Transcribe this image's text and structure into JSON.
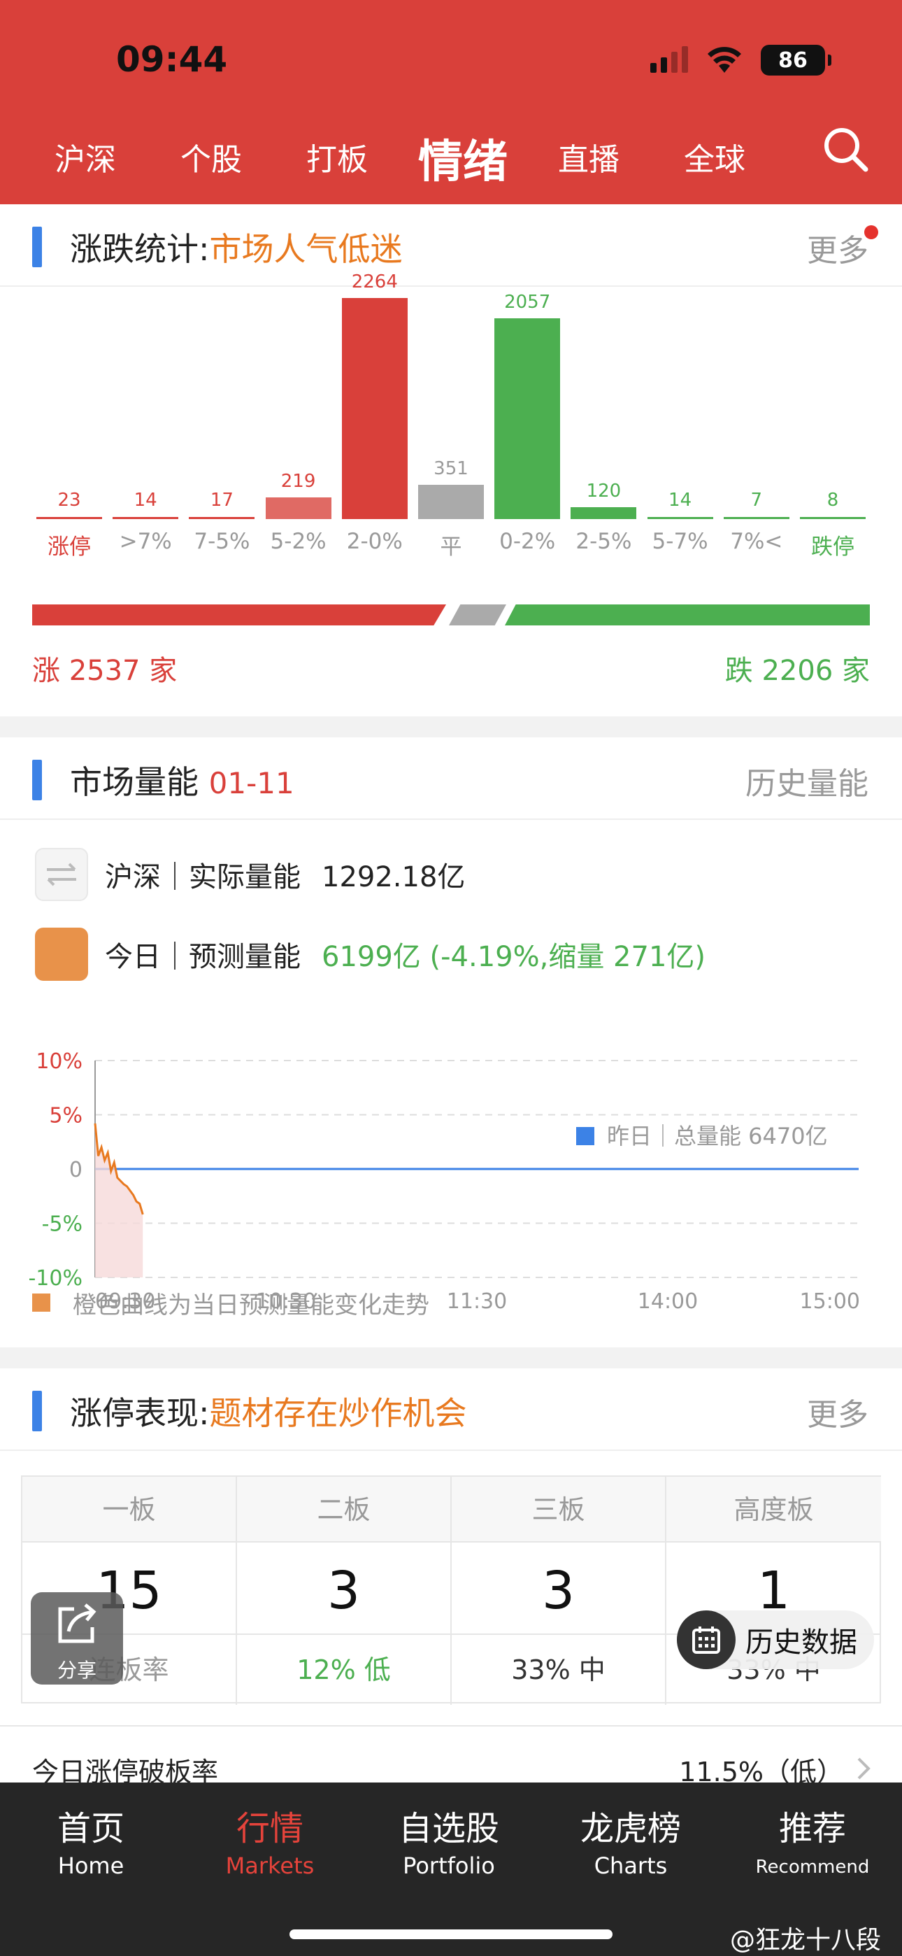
{
  "status_bar": {
    "time": "09:44",
    "battery": "86"
  },
  "nav": {
    "tabs": [
      "沪深",
      "个股",
      "打板",
      "情绪",
      "直播",
      "全球"
    ],
    "active": "情绪"
  },
  "updown": {
    "title": "涨跌统计:",
    "mood": "市场人气低迷",
    "more": "更多",
    "rise_text": "涨 2537 家",
    "fall_text": "跌 2206 家"
  },
  "chart_data": [
    {
      "type": "bar",
      "title": "涨跌统计",
      "categories": [
        "涨停",
        ">7%",
        "7-5%",
        "5-2%",
        "2-0%",
        "平",
        "0-2%",
        "2-5%",
        "5-7%",
        "7%<",
        "跌停"
      ],
      "values": [
        23,
        14,
        17,
        219,
        2264,
        351,
        2057,
        120,
        14,
        7,
        8
      ],
      "value_labels": [
        "23",
        "14",
        "17",
        "219",
        "2264",
        "351",
        "2057",
        "120",
        "14",
        "7",
        "8"
      ],
      "colors": [
        "#d9403a",
        "#d9403a",
        "#d9403a",
        "#e06a64",
        "#d9403a",
        "#aaaaaa",
        "#4caf50",
        "#4caf50",
        "#4caf50",
        "#4caf50",
        "#4caf50"
      ],
      "ylim": [
        0,
        2264
      ]
    },
    {
      "type": "line",
      "title": "",
      "x_ticks": [
        "09:30",
        "10:30",
        "11:30",
        "14:00",
        "15:00"
      ],
      "y_ticks": [
        "10%",
        "5%",
        "0",
        "-5%",
        "-10%"
      ],
      "ylim": [
        -10,
        10
      ],
      "series": [
        {
          "name": "",
          "x": [
            0,
            1,
            2,
            3,
            4,
            5,
            6,
            7,
            8,
            9,
            10,
            11,
            12,
            13,
            14,
            15
          ],
          "y": [
            4.2,
            1.2,
            2.0,
            0.8,
            1.5,
            -0.2,
            0.6,
            -0.8,
            -1.1,
            -1.4,
            -1.6,
            -2.0,
            -2.4,
            -3.0,
            -3.2,
            -4.19
          ]
        }
      ],
      "baseline": {
        "y": 0,
        "label": "昨日｜总量能 6470亿"
      },
      "x_total_minutes": 240
    }
  ],
  "volume": {
    "title": "市场量能",
    "date": "01-11",
    "history": "历史量能",
    "actual_label": "沪深｜实际量能",
    "actual_value": "1292.18亿",
    "forecast_label": "今日｜预测量能",
    "forecast_value": "6199亿 (-4.19%,缩量 271亿)",
    "legend_note": "橙色曲线为当日预测量能变化走势"
  },
  "limitup": {
    "title": "涨停表现:",
    "mood": "题材存在炒作机会",
    "more": "更多",
    "columns": [
      {
        "header": "一板",
        "count": "15",
        "rate": "连板率"
      },
      {
        "header": "二板",
        "count": "3",
        "rate": "12% 低"
      },
      {
        "header": "三板",
        "count": "3",
        "rate": "33% 中"
      },
      {
        "header": "高度板",
        "count": "1",
        "rate": "33% 中"
      }
    ],
    "break_label": "今日涨停破板率",
    "break_value": "11.5%（低）"
  },
  "overlays": {
    "share": "分享",
    "history": "历史数据"
  },
  "tabbar": [
    {
      "cn": "首页",
      "en": "Home"
    },
    {
      "cn": "行情",
      "en": "Markets"
    },
    {
      "cn": "自选股",
      "en": "Portfolio"
    },
    {
      "cn": "龙虎榜",
      "en": "Charts"
    },
    {
      "cn": "推荐",
      "en": "Recommend"
    }
  ],
  "watermark": "@狂龙十八段",
  "colors": {
    "brand_red": "#d9403a",
    "rise": "#d9403a",
    "fall": "#4caf50",
    "accent_blue": "#3c82e6",
    "orange": "#e8791f"
  }
}
